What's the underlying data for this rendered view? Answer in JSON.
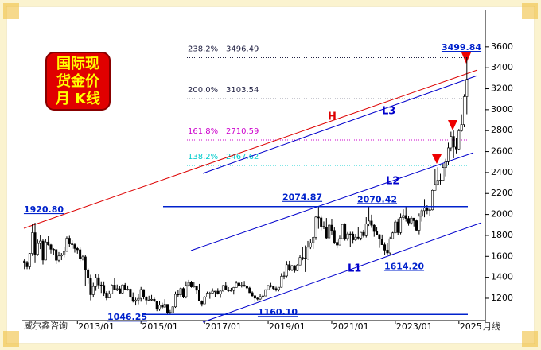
{
  "chart_data": {
    "type": "candlestick",
    "title_lines": [
      "国际现",
      "货金价",
      "月 K线"
    ],
    "source": "威尔鑫咨询",
    "x_unit": "月线",
    "up_color": "#ffffff",
    "down_color": "#000000",
    "outline_color": "#000000",
    "ylim": [
      1010,
      3910
    ],
    "yticks": [
      1200,
      1400,
      1600,
      1800,
      2000,
      2200,
      2400,
      2600,
      2800,
      3000,
      3200,
      3400,
      3600
    ],
    "xticks": [
      "2013/01",
      "2015/01",
      "2017/01",
      "2019/01",
      "2021/01",
      "2023/01",
      {
        "value": "2025/01",
        "label": "2025"
      }
    ],
    "x": [
      "2011/05",
      "2011/06",
      "2011/07",
      "2011/08",
      "2011/09",
      "2011/10",
      "2011/11",
      "2011/12",
      "2012/01",
      "2012/02",
      "2012/03",
      "2012/04",
      "2012/05",
      "2012/06",
      "2012/07",
      "2012/08",
      "2012/09",
      "2012/10",
      "2012/11",
      "2012/12",
      "2013/01",
      "2013/02",
      "2013/03",
      "2013/04",
      "2013/05",
      "2013/06",
      "2013/07",
      "2013/08",
      "2013/09",
      "2013/10",
      "2013/11",
      "2013/12",
      "2014/01",
      "2014/02",
      "2014/03",
      "2014/04",
      "2014/05",
      "2014/06",
      "2014/07",
      "2014/08",
      "2014/09",
      "2014/10",
      "2014/11",
      "2014/12",
      "2015/01",
      "2015/02",
      "2015/03",
      "2015/04",
      "2015/05",
      "2015/06",
      "2015/07",
      "2015/08",
      "2015/09",
      "2015/10",
      "2015/11",
      "2015/12",
      "2016/01",
      "2016/02",
      "2016/03",
      "2016/04",
      "2016/05",
      "2016/06",
      "2016/07",
      "2016/08",
      "2016/09",
      "2016/10",
      "2016/11",
      "2016/12",
      "2017/01",
      "2017/02",
      "2017/03",
      "2017/04",
      "2017/05",
      "2017/06",
      "2017/07",
      "2017/08",
      "2017/09",
      "2017/10",
      "2017/11",
      "2017/12",
      "2018/01",
      "2018/02",
      "2018/03",
      "2018/04",
      "2018/05",
      "2018/06",
      "2018/07",
      "2018/08",
      "2018/09",
      "2018/10",
      "2018/11",
      "2018/12",
      "2019/01",
      "2019/02",
      "2019/03",
      "2019/04",
      "2019/05",
      "2019/06",
      "2019/07",
      "2019/08",
      "2019/09",
      "2019/10",
      "2019/11",
      "2019/12",
      "2020/01",
      "2020/02",
      "2020/03",
      "2020/04",
      "2020/05",
      "2020/06",
      "2020/07",
      "2020/08",
      "2020/09",
      "2020/10",
      "2020/11",
      "2020/12",
      "2021/01",
      "2021/02",
      "2021/03",
      "2021/04",
      "2021/05",
      "2021/06",
      "2021/07",
      "2021/08",
      "2021/09",
      "2021/10",
      "2021/11",
      "2021/12",
      "2022/01",
      "2022/02",
      "2022/03",
      "2022/04",
      "2022/05",
      "2022/06",
      "2022/07",
      "2022/08",
      "2022/09",
      "2022/10",
      "2022/11",
      "2022/12",
      "2023/01",
      "2023/02",
      "2023/03",
      "2023/04",
      "2023/05",
      "2023/06",
      "2023/07",
      "2023/08",
      "2023/09",
      "2023/10",
      "2023/11",
      "2023/12",
      "2024/01",
      "2024/02",
      "2024/03",
      "2024/04",
      "2024/05",
      "2024/06",
      "2024/07",
      "2024/08",
      "2024/09",
      "2024/10",
      "2024/11",
      "2024/12",
      "2025/01",
      "2025/02",
      "2025/03",
      "2025/04"
    ],
    "ohlc": [
      [
        1556,
        1577,
        1478,
        1536
      ],
      [
        1536,
        1556,
        1478,
        1500
      ],
      [
        1500,
        1632,
        1478,
        1628
      ],
      [
        1628,
        1912,
        1604,
        1826
      ],
      [
        1826,
        1920.8,
        1535,
        1620
      ],
      [
        1620,
        1760,
        1605,
        1723
      ],
      [
        1723,
        1803,
        1670,
        1746
      ],
      [
        1746,
        1764,
        1522,
        1565
      ],
      [
        1565,
        1764,
        1563,
        1737
      ],
      [
        1737,
        1792,
        1703,
        1710
      ],
      [
        1710,
        1718,
        1627,
        1668
      ],
      [
        1668,
        1677,
        1613,
        1664
      ],
      [
        1664,
        1668,
        1527,
        1563
      ],
      [
        1563,
        1641,
        1540,
        1604
      ],
      [
        1604,
        1632,
        1564,
        1615
      ],
      [
        1615,
        1693,
        1591,
        1648
      ],
      [
        1648,
        1790,
        1645,
        1773
      ],
      [
        1773,
        1796,
        1691,
        1719
      ],
      [
        1719,
        1754,
        1672,
        1712
      ],
      [
        1712,
        1723,
        1636,
        1675
      ],
      [
        1675,
        1694,
        1626,
        1663
      ],
      [
        1663,
        1685,
        1554,
        1579
      ],
      [
        1579,
        1617,
        1562,
        1595
      ],
      [
        1595,
        1616,
        1321,
        1472
      ],
      [
        1472,
        1488,
        1338,
        1393
      ],
      [
        1393,
        1424,
        1180,
        1234
      ],
      [
        1234,
        1348,
        1207,
        1313
      ],
      [
        1313,
        1434,
        1271,
        1396
      ],
      [
        1396,
        1434,
        1292,
        1327
      ],
      [
        1327,
        1361,
        1251,
        1323
      ],
      [
        1323,
        1361,
        1222,
        1251
      ],
      [
        1251,
        1267,
        1182,
        1202
      ],
      [
        1202,
        1270,
        1200,
        1244
      ],
      [
        1244,
        1332,
        1238,
        1326
      ],
      [
        1326,
        1392,
        1277,
        1284
      ],
      [
        1284,
        1331,
        1268,
        1291
      ],
      [
        1291,
        1315,
        1240,
        1250
      ],
      [
        1250,
        1332,
        1241,
        1327
      ],
      [
        1327,
        1345,
        1281,
        1282
      ],
      [
        1282,
        1322,
        1273,
        1287
      ],
      [
        1287,
        1292,
        1206,
        1210
      ],
      [
        1210,
        1256,
        1160,
        1171
      ],
      [
        1171,
        1205,
        1131,
        1183
      ],
      [
        1183,
        1238,
        1142,
        1199
      ],
      [
        1199,
        1308,
        1167,
        1283
      ],
      [
        1283,
        1286,
        1191,
        1213
      ],
      [
        1213,
        1219,
        1142,
        1183
      ],
      [
        1183,
        1224,
        1174,
        1183
      ],
      [
        1183,
        1232,
        1170,
        1190
      ],
      [
        1190,
        1205,
        1162,
        1172
      ],
      [
        1172,
        1175,
        1077,
        1095
      ],
      [
        1095,
        1170,
        1080,
        1133
      ],
      [
        1133,
        1157,
        1098,
        1115
      ],
      [
        1115,
        1191,
        1112,
        1142
      ],
      [
        1142,
        1143,
        1052,
        1065
      ],
      [
        1065,
        1088,
        1046.25,
        1061
      ],
      [
        1061,
        1123,
        1062,
        1118
      ],
      [
        1118,
        1263,
        1108,
        1238
      ],
      [
        1238,
        1283,
        1208,
        1233
      ],
      [
        1233,
        1303,
        1208,
        1293
      ],
      [
        1293,
        1304,
        1200,
        1215
      ],
      [
        1215,
        1362,
        1199,
        1322
      ],
      [
        1322,
        1375,
        1311,
        1351
      ],
      [
        1351,
        1366,
        1301,
        1309
      ],
      [
        1309,
        1352,
        1302,
        1316
      ],
      [
        1316,
        1317,
        1241,
        1277
      ],
      [
        1277,
        1337,
        1171,
        1173
      ],
      [
        1173,
        1180,
        1122,
        1146
      ],
      [
        1146,
        1220,
        1146,
        1211
      ],
      [
        1211,
        1264,
        1208,
        1249
      ],
      [
        1249,
        1262,
        1195,
        1249
      ],
      [
        1249,
        1295,
        1241,
        1268
      ],
      [
        1268,
        1270,
        1214,
        1268
      ],
      [
        1268,
        1296,
        1236,
        1242
      ],
      [
        1242,
        1274,
        1204,
        1269
      ],
      [
        1269,
        1326,
        1266,
        1322
      ],
      [
        1322,
        1358,
        1277,
        1280
      ],
      [
        1280,
        1306,
        1260,
        1271
      ],
      [
        1271,
        1299,
        1264,
        1275
      ],
      [
        1275,
        1308,
        1236,
        1303
      ],
      [
        1303,
        1366,
        1302,
        1345
      ],
      [
        1345,
        1361,
        1307,
        1318
      ],
      [
        1318,
        1356,
        1303,
        1325
      ],
      [
        1325,
        1365,
        1310,
        1315
      ],
      [
        1315,
        1326,
        1282,
        1298
      ],
      [
        1298,
        1309,
        1251,
        1253
      ],
      [
        1253,
        1266,
        1211,
        1224
      ],
      [
        1224,
        1225,
        1160.1,
        1201
      ],
      [
        1201,
        1214,
        1180,
        1192
      ],
      [
        1192,
        1243,
        1183,
        1215
      ],
      [
        1215,
        1237,
        1196,
        1222
      ],
      [
        1222,
        1284,
        1221,
        1282
      ],
      [
        1282,
        1326,
        1276,
        1321
      ],
      [
        1321,
        1347,
        1303,
        1313
      ],
      [
        1313,
        1320,
        1280,
        1292
      ],
      [
        1292,
        1310,
        1266,
        1283
      ],
      [
        1283,
        1306,
        1266,
        1305
      ],
      [
        1305,
        1439,
        1301,
        1409
      ],
      [
        1409,
        1453,
        1381,
        1413
      ],
      [
        1413,
        1555,
        1400,
        1520
      ],
      [
        1520,
        1557,
        1459,
        1472
      ],
      [
        1472,
        1517,
        1459,
        1511
      ],
      [
        1511,
        1516,
        1445,
        1464
      ],
      [
        1464,
        1525,
        1459,
        1517
      ],
      [
        1517,
        1611,
        1517,
        1589
      ],
      [
        1589,
        1689,
        1563,
        1585
      ],
      [
        1585,
        1704,
        1451,
        1577
      ],
      [
        1577,
        1747,
        1568,
        1687
      ],
      [
        1687,
        1765,
        1670,
        1730
      ],
      [
        1730,
        1789,
        1671,
        1781
      ],
      [
        1781,
        1984,
        1757,
        1975
      ],
      [
        1975,
        2074.87,
        1863,
        1967
      ],
      [
        1967,
        1992,
        1849,
        1886
      ],
      [
        1886,
        1933,
        1860,
        1879
      ],
      [
        1879,
        1966,
        1764,
        1776
      ],
      [
        1776,
        1906,
        1775,
        1898
      ],
      [
        1898,
        1959,
        1802,
        1847
      ],
      [
        1847,
        1875,
        1717,
        1734
      ],
      [
        1734,
        1755,
        1677,
        1708
      ],
      [
        1708,
        1798,
        1705,
        1769
      ],
      [
        1769,
        1913,
        1766,
        1905
      ],
      [
        1905,
        1916,
        1750,
        1770
      ],
      [
        1770,
        1832,
        1750,
        1814
      ],
      [
        1814,
        1834,
        1688,
        1813
      ],
      [
        1813,
        1834,
        1721,
        1757
      ],
      [
        1757,
        1814,
        1746,
        1783
      ],
      [
        1783,
        1877,
        1758,
        1774
      ],
      [
        1774,
        1831,
        1753,
        1829
      ],
      [
        1829,
        1853,
        1780,
        1797
      ],
      [
        1797,
        1974,
        1780,
        1909
      ],
      [
        1909,
        2070.42,
        1890,
        1937
      ],
      [
        1937,
        1998,
        1872,
        1897
      ],
      [
        1897,
        1910,
        1787,
        1837
      ],
      [
        1837,
        1879,
        1805,
        1807
      ],
      [
        1807,
        1814,
        1681,
        1766
      ],
      [
        1766,
        1808,
        1709,
        1711
      ],
      [
        1711,
        1735,
        1614.2,
        1660
      ],
      [
        1660,
        1730,
        1617,
        1633
      ],
      [
        1633,
        1786,
        1616,
        1768
      ],
      [
        1768,
        1833,
        1765,
        1824
      ],
      [
        1824,
        1949,
        1823,
        1928
      ],
      [
        1928,
        1960,
        1804,
        1827
      ],
      [
        1827,
        2009,
        1810,
        1969
      ],
      [
        1969,
        2049,
        1950,
        1990
      ],
      [
        1990,
        2079,
        1932,
        1962
      ],
      [
        1962,
        1983,
        1893,
        1919
      ],
      [
        1919,
        1987,
        1903,
        1965
      ],
      [
        1965,
        1966,
        1885,
        1940
      ],
      [
        1940,
        1953,
        1846,
        1849
      ],
      [
        1849,
        2010,
        1810,
        1983
      ],
      [
        1983,
        2052,
        1932,
        2036
      ],
      [
        2036,
        2146,
        1973,
        2063
      ],
      [
        2063,
        2088,
        2002,
        2039
      ],
      [
        2039,
        2065,
        1984,
        2044
      ],
      [
        2044,
        2236,
        2039,
        2230
      ],
      [
        2230,
        2431,
        2228,
        2286
      ],
      [
        2286,
        2450,
        2277,
        2327
      ],
      [
        2327,
        2388,
        2286,
        2326
      ],
      [
        2326,
        2483,
        2319,
        2447
      ],
      [
        2447,
        2531,
        2364,
        2503
      ],
      [
        2503,
        2685,
        2471,
        2635
      ],
      [
        2635,
        2790,
        2603,
        2744
      ],
      [
        2744,
        2801,
        2536,
        2643
      ],
      [
        2643,
        2726,
        2583,
        2625
      ],
      [
        2625,
        2817,
        2614,
        2798
      ],
      [
        2798,
        2956,
        2790,
        2858
      ],
      [
        2858,
        3148,
        2832,
        3124
      ],
      [
        3124,
        3499.84,
        2957,
        3289
      ]
    ],
    "fib_levels": [
      {
        "label": "238.2%",
        "value": 3496.49,
        "color": "#222244"
      },
      {
        "label": "200.0%",
        "value": 3103.54,
        "color": "#222244"
      },
      {
        "label": "161.8%",
        "value": 2710.59,
        "color": "#cc00cc"
      },
      {
        "label": "138.2%",
        "value": 2467.62,
        "color": "#00cccc"
      }
    ],
    "price_labels": [
      {
        "value": 1920.8,
        "label": "1920.80"
      },
      {
        "value": 2074.87,
        "label": "2074.87",
        "line": true
      },
      {
        "value": 2070.42,
        "label": "2070.42"
      },
      {
        "value": 1614.2,
        "label": "1614.20"
      },
      {
        "value": 1160.1,
        "label": "1160.10"
      },
      {
        "value": 1046.25,
        "label": "1046.25",
        "line": true
      },
      {
        "value": 3499.84,
        "label": "3499.84"
      }
    ],
    "trendlines": [
      {
        "name": "H",
        "color": "#dd0000"
      },
      {
        "name": "L3",
        "color": "#0000cc"
      },
      {
        "name": "L2",
        "color": "#0000cc"
      },
      {
        "name": "L1",
        "color": "#0000cc"
      }
    ]
  }
}
